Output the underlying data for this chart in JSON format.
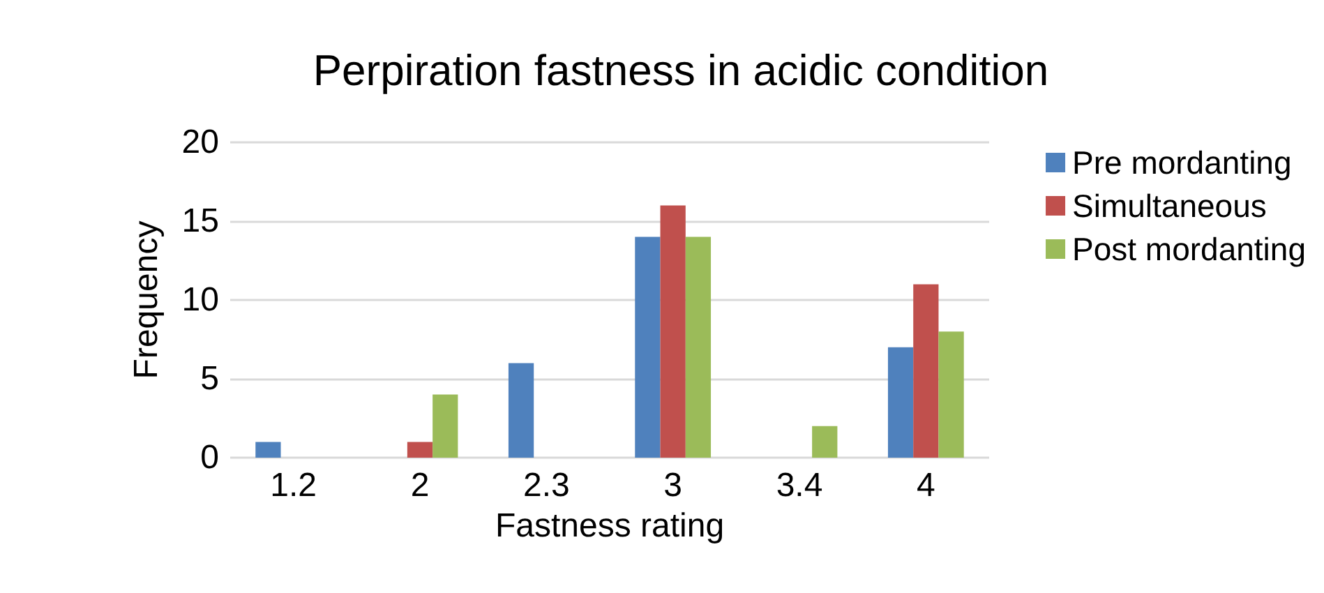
{
  "chart_data": {
    "type": "bar",
    "title": "Perpiration fastness in acidic condition",
    "xlabel": "Fastness rating",
    "ylabel": "Frequency",
    "categories": [
      "1.2",
      "2",
      "2.3",
      "3",
      "3.4",
      "4"
    ],
    "series": [
      {
        "name": "Pre mordanting",
        "color": "#4f81bd",
        "values": [
          1,
          0,
          6,
          14,
          0,
          7
        ]
      },
      {
        "name": "Simultaneous",
        "color": "#c0504d",
        "values": [
          0,
          1,
          0,
          16,
          0,
          11
        ]
      },
      {
        "name": "Post mordanting",
        "color": "#9bbb59",
        "values": [
          0,
          4,
          0,
          14,
          2,
          8
        ]
      }
    ],
    "ylim": [
      0,
      20
    ],
    "yticks": [
      0,
      5,
      10,
      15,
      20
    ],
    "grid": "y",
    "legend": "right"
  }
}
